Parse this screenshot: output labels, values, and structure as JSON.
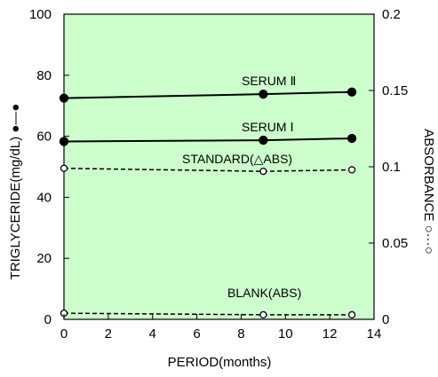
{
  "chart_data": {
    "type": "line",
    "xlabel": "PERIOD(months)",
    "ylabel": "TRIGLYCERIDE(mg/dL) ●—●",
    "y2label": "ABSORBANCE ○···○",
    "xlim": [
      0,
      14
    ],
    "ylim": [
      0,
      100
    ],
    "y2lim": [
      0,
      0.2
    ],
    "x_ticks": [
      "0",
      "2",
      "4",
      "6",
      "8",
      "10",
      "12",
      "14"
    ],
    "y_ticks": [
      "0",
      "20",
      "40",
      "60",
      "80",
      "100"
    ],
    "y2_ticks": [
      "0",
      "0.05",
      "0.1",
      "0.15",
      "0.2"
    ],
    "plot_background": "#ccffcc",
    "series": [
      {
        "name": "SERUM Ⅱ",
        "axis": "left",
        "style": "solid",
        "marker": "filled-circle",
        "x": [
          0,
          9,
          13
        ],
        "y": [
          72.5,
          73.8,
          74.5
        ]
      },
      {
        "name": "SERUM Ⅰ",
        "axis": "left",
        "style": "solid",
        "marker": "filled-circle",
        "x": [
          0,
          9,
          13
        ],
        "y": [
          58.3,
          58.7,
          59.3
        ]
      },
      {
        "name": "STANDARD(△ABS)",
        "axis": "right",
        "style": "dashed",
        "marker": "open-circle",
        "x": [
          0,
          9,
          13
        ],
        "y": [
          0.099,
          0.097,
          0.098
        ]
      },
      {
        "name": "BLANK(ABS)",
        "axis": "right",
        "style": "dashed",
        "marker": "open-circle",
        "x": [
          0,
          9,
          13
        ],
        "y": [
          0.004,
          0.003,
          0.003
        ]
      }
    ]
  }
}
